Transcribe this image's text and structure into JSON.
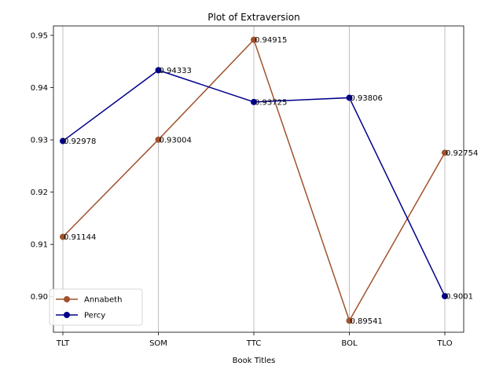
{
  "chart_data": {
    "type": "line",
    "title": "Plot of Extraversion",
    "xlabel": "Book Titles",
    "ylabel": "",
    "categories": [
      "TLT",
      "SOM",
      "TTC",
      "BOL",
      "TLO"
    ],
    "series": [
      {
        "name": "Annabeth",
        "color": "#a0522d",
        "values": [
          0.91144,
          0.93004,
          0.94915,
          0.89541,
          0.92754
        ],
        "labels": [
          "0.91144",
          "0.93004",
          "0.94915",
          "0.89541",
          "0.92754"
        ]
      },
      {
        "name": "Percy",
        "color": "#00008b",
        "values": [
          0.92978,
          0.94333,
          0.93725,
          0.93806,
          0.9001
        ],
        "labels": [
          "0.92978",
          "0.94333",
          "0.93725",
          "0.93806",
          "0.9001"
        ]
      }
    ],
    "ylim": [
      0.8932,
      0.9518
    ],
    "yticks": [
      0.9,
      0.91,
      0.92,
      0.93,
      0.94,
      0.95
    ],
    "ytick_labels": [
      "0.90",
      "0.91",
      "0.92",
      "0.93",
      "0.94",
      "0.95"
    ],
    "grid": "x-only",
    "legend": "lower-left"
  }
}
